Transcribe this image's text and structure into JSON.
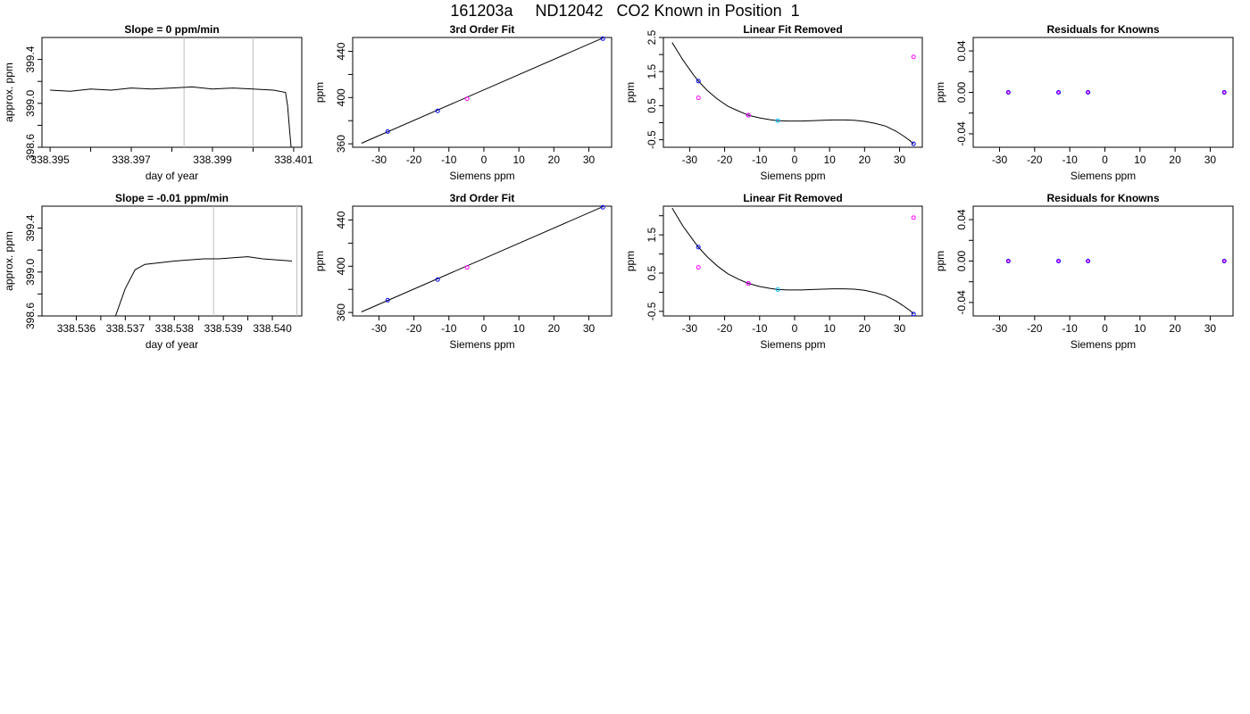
{
  "page": {
    "title": "161203a     ND12042   CO2 Known in Position  1"
  },
  "colors": {
    "trace": "#000000",
    "fit_line": "#000000",
    "marker_line": "#bebebe",
    "known_points": "#0000ff",
    "residual_points": "#ff00ff",
    "highlight_point": "#00bfff",
    "axes": "#000000"
  },
  "chart_data": [
    {
      "type": "line",
      "title": "Slope =  0  ppm/min",
      "xlabel": "day of year",
      "ylabel": "approx. ppm",
      "xlim": [
        338.3948,
        338.4012
      ],
      "ylim": [
        398.6,
        399.6
      ],
      "x_ticks": [
        338.395,
        338.396,
        338.397,
        338.398,
        338.399,
        338.4,
        338.401
      ],
      "x_tick_labels": [
        "338.395",
        "",
        "338.397",
        "",
        "338.399",
        "",
        "338.401"
      ],
      "y_ticks": [
        398.6,
        398.8,
        399.0,
        399.2,
        399.4
      ],
      "y_tick_labels": [
        "398.6",
        "",
        "399.0",
        "",
        "399.4"
      ],
      "vlines": [
        338.3983,
        338.4
      ],
      "trace": {
        "x": [
          338.395,
          338.3955,
          338.396,
          338.3965,
          338.397,
          338.3975,
          338.398,
          338.3985,
          338.399,
          338.3995,
          338.4,
          338.4005,
          338.4008,
          338.40085,
          338.4009,
          338.40095
        ],
        "y": [
          399.12,
          399.11,
          399.13,
          399.12,
          399.14,
          399.13,
          399.14,
          399.15,
          399.13,
          399.14,
          399.13,
          399.12,
          399.1,
          398.98,
          398.75,
          398.55
        ]
      }
    },
    {
      "type": "scatter",
      "title": "3rd Order Fit",
      "xlabel": "Siemens ppm",
      "ylabel": "ppm",
      "xlim": [
        -37.5,
        36.5
      ],
      "ylim": [
        357,
        452
      ],
      "x_ticks": [
        -30,
        -20,
        -10,
        0,
        10,
        20,
        30
      ],
      "x_tick_labels": [
        "-30",
        "-20",
        "-10",
        "0",
        "10",
        "20",
        "30"
      ],
      "y_ticks": [
        360,
        380,
        400,
        420,
        440
      ],
      "y_tick_labels": [
        "360",
        "",
        "400",
        "",
        "440"
      ],
      "fit_line": {
        "x": [
          -35,
          34
        ],
        "y": [
          360.5,
          451.5
        ]
      },
      "points": [
        {
          "x": -27.5,
          "y": 370.6,
          "color": "known_points"
        },
        {
          "x": -13.2,
          "y": 388.5,
          "color": "known_points"
        },
        {
          "x": -4.8,
          "y": 399.0,
          "color": "residual_points"
        },
        {
          "x": 34.0,
          "y": 451.0,
          "color": "known_points"
        }
      ]
    },
    {
      "type": "scatter",
      "title": "Linear Fit Removed",
      "xlabel": "Siemens ppm",
      "ylabel": "ppm",
      "xlim": [
        -37.5,
        36.5
      ],
      "ylim": [
        -0.72,
        2.5
      ],
      "x_ticks": [
        -30,
        -20,
        -10,
        0,
        10,
        20,
        30
      ],
      "x_tick_labels": [
        "-30",
        "-20",
        "-10",
        "0",
        "10",
        "20",
        "30"
      ],
      "y_ticks": [
        -0.5,
        0.0,
        0.5,
        1.0,
        1.5,
        2.0,
        2.5
      ],
      "y_tick_labels": [
        "-0.5",
        "",
        "0.5",
        "",
        "1.5",
        "",
        "2.5"
      ],
      "curve": {
        "x": [
          -35,
          -32,
          -29,
          -27.5,
          -25,
          -22,
          -19,
          -16,
          -13.2,
          -10,
          -7,
          -4.8,
          -2,
          0,
          2,
          5,
          8,
          11,
          14,
          17,
          20,
          23,
          26,
          29,
          31,
          33,
          34
        ],
        "y": [
          2.35,
          1.85,
          1.42,
          1.22,
          0.95,
          0.69,
          0.48,
          0.34,
          0.22,
          0.14,
          0.09,
          0.06,
          0.05,
          0.05,
          0.05,
          0.06,
          0.07,
          0.08,
          0.08,
          0.07,
          0.04,
          -0.02,
          -0.1,
          -0.25,
          -0.38,
          -0.53,
          -0.62
        ]
      },
      "points": [
        {
          "x": -27.5,
          "y": 1.22,
          "color": "known_points"
        },
        {
          "x": -27.5,
          "y": 0.73,
          "color": "residual_points"
        },
        {
          "x": -13.2,
          "y": 0.22,
          "color": "known_points"
        },
        {
          "x": -13.2,
          "y": 0.22,
          "color": "residual_points"
        },
        {
          "x": -4.8,
          "y": 0.06,
          "color": "highlight_point"
        },
        {
          "x": 34.0,
          "y": 1.93,
          "color": "residual_points"
        },
        {
          "x": 34.0,
          "y": -0.62,
          "color": "known_points"
        }
      ]
    },
    {
      "type": "scatter",
      "title": "Residuals for Knowns",
      "xlabel": "Siemens ppm",
      "ylabel": "ppm",
      "xlim": [
        -37.5,
        36.5
      ],
      "ylim": [
        -0.053,
        0.053
      ],
      "x_ticks": [
        -30,
        -20,
        -10,
        0,
        10,
        20,
        30
      ],
      "x_tick_labels": [
        "-30",
        "-20",
        "-10",
        "0",
        "10",
        "20",
        "30"
      ],
      "y_ticks": [
        -0.04,
        -0.02,
        0.0,
        0.02,
        0.04
      ],
      "y_tick_labels": [
        "-0.04",
        "",
        "0.00",
        "",
        "0.04"
      ],
      "points": [
        {
          "x": -27.5,
          "y": 0.0,
          "color": "known_points",
          "outline": "residual_points"
        },
        {
          "x": -13.2,
          "y": 0.0,
          "color": "known_points",
          "outline": "residual_points"
        },
        {
          "x": -4.8,
          "y": 0.0,
          "color": "known_points",
          "outline": "residual_points"
        },
        {
          "x": 34.0,
          "y": 0.0,
          "color": "known_points",
          "outline": "residual_points"
        }
      ]
    },
    {
      "type": "line",
      "title": "Slope =  -0.01  ppm/min",
      "xlabel": "day of year",
      "ylabel": "approx. ppm",
      "xlim": [
        338.5353,
        338.5406
      ],
      "ylim": [
        398.6,
        399.6
      ],
      "x_ticks": [
        338.536,
        338.5365,
        338.537,
        338.5375,
        338.538,
        338.5385,
        338.539,
        338.5395,
        338.54
      ],
      "x_tick_labels": [
        "338.536",
        "",
        "338.537",
        "",
        "338.538",
        "",
        "338.539",
        "",
        "338.540"
      ],
      "y_ticks": [
        398.6,
        398.8,
        399.0,
        399.2,
        399.4
      ],
      "y_tick_labels": [
        "398.6",
        "",
        "399.0",
        "",
        "399.4"
      ],
      "vlines": [
        338.5388,
        338.5405
      ],
      "trace": {
        "x": [
          338.5368,
          338.537,
          338.5372,
          338.5374,
          338.5376,
          338.5378,
          338.538,
          338.5383,
          338.5386,
          338.5389,
          338.5392,
          338.5395,
          338.5398,
          338.5401,
          338.5404
        ],
        "y": [
          398.6,
          398.85,
          399.02,
          399.07,
          399.08,
          399.09,
          399.1,
          399.11,
          399.12,
          399.12,
          399.13,
          399.14,
          399.12,
          399.11,
          399.1
        ]
      }
    },
    {
      "type": "scatter",
      "title": "3rd Order Fit",
      "xlabel": "Siemens ppm",
      "ylabel": "ppm",
      "xlim": [
        -37.5,
        36.5
      ],
      "ylim": [
        357,
        452
      ],
      "x_ticks": [
        -30,
        -20,
        -10,
        0,
        10,
        20,
        30
      ],
      "x_tick_labels": [
        "-30",
        "-20",
        "-10",
        "0",
        "10",
        "20",
        "30"
      ],
      "y_ticks": [
        360,
        380,
        400,
        420,
        440
      ],
      "y_tick_labels": [
        "360",
        "",
        "400",
        "",
        "440"
      ],
      "fit_line": {
        "x": [
          -35,
          34
        ],
        "y": [
          360.5,
          451.5
        ]
      },
      "points": [
        {
          "x": -27.5,
          "y": 370.6,
          "color": "known_points"
        },
        {
          "x": -13.2,
          "y": 388.5,
          "color": "known_points"
        },
        {
          "x": -4.8,
          "y": 399.0,
          "color": "residual_points"
        },
        {
          "x": 34.0,
          "y": 451.0,
          "color": "known_points"
        }
      ]
    },
    {
      "type": "scatter",
      "title": "Linear Fit Removed",
      "xlabel": "Siemens ppm",
      "ylabel": "ppm",
      "xlim": [
        -37.5,
        36.5
      ],
      "ylim": [
        -0.62,
        2.25
      ],
      "x_ticks": [
        -30,
        -20,
        -10,
        0,
        10,
        20,
        30
      ],
      "x_tick_labels": [
        "-30",
        "-20",
        "-10",
        "0",
        "10",
        "20",
        "30"
      ],
      "y_ticks": [
        -0.5,
        0.0,
        0.5,
        1.0,
        1.5,
        2.0
      ],
      "y_tick_labels": [
        "-0.5",
        "",
        "0.5",
        "",
        "1.5",
        ""
      ],
      "curve": {
        "x": [
          -35,
          -32,
          -29,
          -27.5,
          -25,
          -22,
          -19,
          -16,
          -13.2,
          -10,
          -7,
          -4.8,
          -2,
          0,
          2,
          5,
          8,
          11,
          14,
          17,
          20,
          23,
          26,
          29,
          31,
          33,
          34
        ],
        "y": [
          2.2,
          1.74,
          1.36,
          1.18,
          0.93,
          0.68,
          0.48,
          0.34,
          0.23,
          0.15,
          0.1,
          0.07,
          0.06,
          0.06,
          0.06,
          0.07,
          0.08,
          0.09,
          0.09,
          0.08,
          0.05,
          -0.01,
          -0.09,
          -0.23,
          -0.35,
          -0.48,
          -0.57
        ]
      },
      "points": [
        {
          "x": -27.5,
          "y": 1.18,
          "color": "known_points"
        },
        {
          "x": -27.5,
          "y": 0.65,
          "color": "residual_points"
        },
        {
          "x": -13.2,
          "y": 0.23,
          "color": "known_points"
        },
        {
          "x": -13.2,
          "y": 0.23,
          "color": "residual_points"
        },
        {
          "x": -4.8,
          "y": 0.07,
          "color": "highlight_point"
        },
        {
          "x": 34.0,
          "y": 1.95,
          "color": "residual_points"
        },
        {
          "x": 34.0,
          "y": -0.57,
          "color": "known_points"
        }
      ]
    },
    {
      "type": "scatter",
      "title": "Residuals for Knowns",
      "xlabel": "Siemens ppm",
      "ylabel": "ppm",
      "xlim": [
        -37.5,
        36.5
      ],
      "ylim": [
        -0.053,
        0.053
      ],
      "x_ticks": [
        -30,
        -20,
        -10,
        0,
        10,
        20,
        30
      ],
      "x_tick_labels": [
        "-30",
        "-20",
        "-10",
        "0",
        "10",
        "20",
        "30"
      ],
      "y_ticks": [
        -0.04,
        -0.02,
        0.0,
        0.02,
        0.04
      ],
      "y_tick_labels": [
        "-0.04",
        "",
        "0.00",
        "",
        "0.04"
      ],
      "points": [
        {
          "x": -27.5,
          "y": 0.0,
          "color": "known_points",
          "outline": "residual_points"
        },
        {
          "x": -13.2,
          "y": 0.0,
          "color": "known_points",
          "outline": "residual_points"
        },
        {
          "x": -4.8,
          "y": 0.0,
          "color": "known_points",
          "outline": "residual_points"
        },
        {
          "x": 34.0,
          "y": 0.0,
          "color": "known_points",
          "outline": "residual_points"
        }
      ]
    }
  ]
}
